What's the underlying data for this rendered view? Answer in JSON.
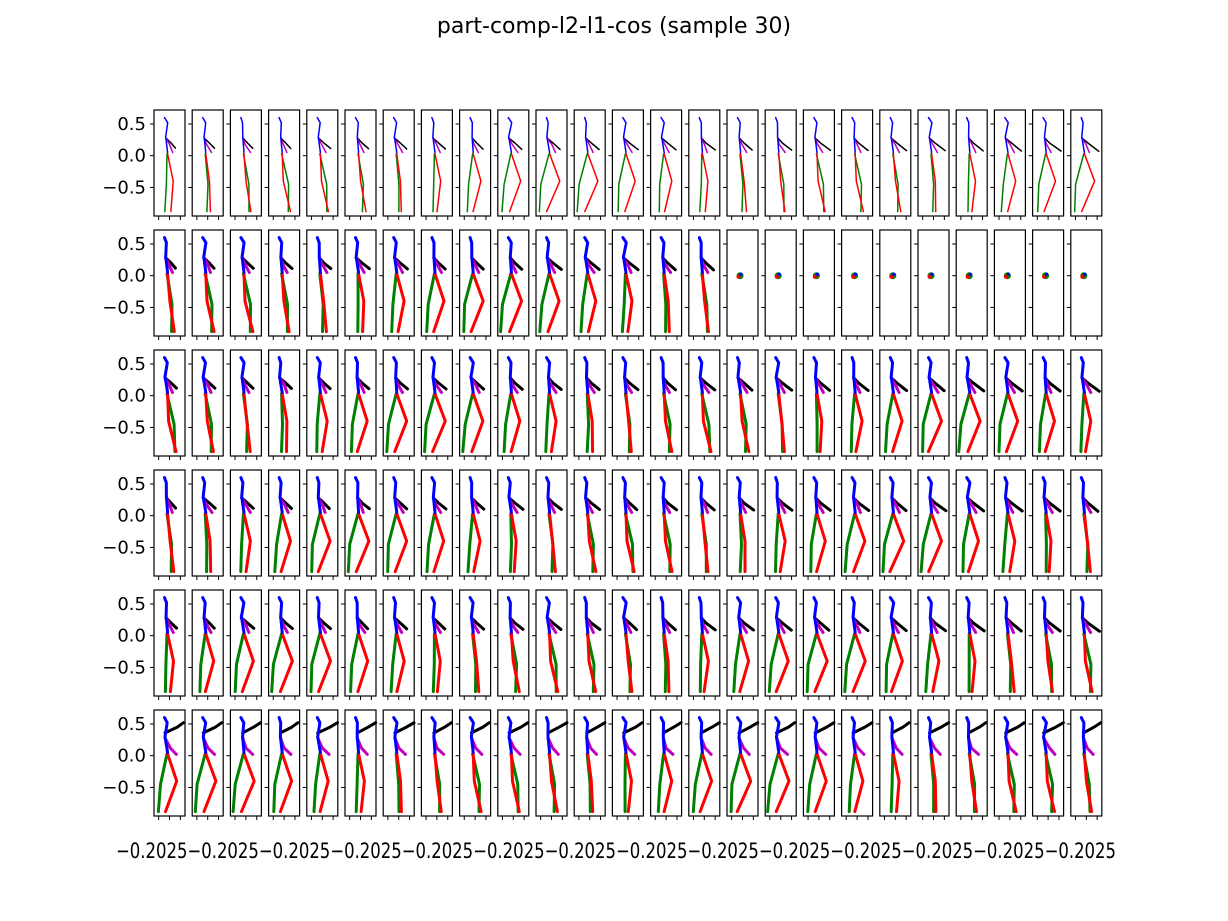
{
  "chart_data": {
    "type": "small-multiples",
    "title": "part-comp-l2-l1-cos (sample 30)",
    "rows": 6,
    "cols": 25,
    "ylim": [
      -0.95,
      0.72
    ],
    "yticks": [
      {
        "value": 0.5,
        "label": "0.5"
      },
      {
        "value": 0.0,
        "label": "0.0"
      },
      {
        "value": -0.5,
        "label": "−0.5"
      }
    ],
    "bottom_tick_labels": "−0.2025",
    "limb_colors": {
      "spine": "#0000ff",
      "arm_left": "#000000",
      "arm_right": "#bf00bf",
      "leg_left": "#008000",
      "leg_right": "#ff0000"
    },
    "line_widths_by_row": [
      1.5,
      3,
      3,
      3,
      3,
      3
    ],
    "collapsed_panels": {
      "row": 2,
      "from_col": 16
    }
  }
}
